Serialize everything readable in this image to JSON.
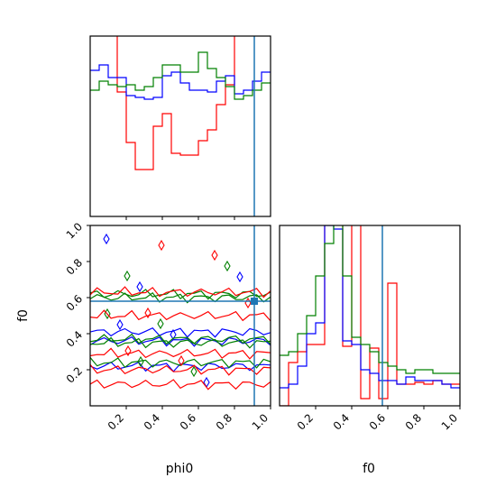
{
  "chart_data": [
    {
      "panel": "phi0 marginal",
      "type": "histogram",
      "xlabel": "",
      "ylabel": "",
      "xlim": [
        0.0,
        1.0
      ],
      "ylim": [
        0,
        100
      ],
      "truth_x": 0.91,
      "bins": 20,
      "series": [
        {
          "color": "#ff0000",
          "values": [
            105,
            101,
            101,
            69,
            41,
            26,
            26,
            50,
            57,
            35,
            34,
            34,
            42,
            48,
            62,
            73,
            102,
            104,
            105,
            105
          ]
        },
        {
          "color": "#0000ff",
          "values": [
            81,
            84,
            77,
            77,
            67,
            66,
            65,
            66,
            78,
            80,
            74,
            70,
            70,
            69,
            75,
            78,
            68,
            70,
            75,
            80
          ]
        },
        {
          "color": "#008000",
          "values": [
            70,
            75,
            73,
            72,
            73,
            70,
            72,
            77,
            84,
            84,
            80,
            80,
            91,
            82,
            77,
            72,
            65,
            67,
            70,
            74
          ]
        }
      ]
    },
    {
      "panel": "phi0 vs f0",
      "type": "contour",
      "xlabel": "phi0",
      "ylabel": "f0",
      "xlim": [
        0.0,
        1.0
      ],
      "ylim": [
        0.0,
        1.0
      ],
      "xticks": [
        "0.2",
        "0.4",
        "0.6",
        "0.8",
        "1.0"
      ],
      "yticks": [
        "0.2",
        "0.4",
        "0.6",
        "0.8",
        "1.0"
      ],
      "truth_x": 0.91,
      "truth_y": 0.58,
      "series": [
        {
          "color": "#0000ff",
          "lines_y": [
            0.22,
            0.36,
            0.41
          ]
        },
        {
          "color": "#008000",
          "lines_y": [
            0.24,
            0.35,
            0.37,
            0.6,
            0.62
          ]
        },
        {
          "color": "#ff0000",
          "lines_y": [
            0.12,
            0.2,
            0.29,
            0.5,
            0.63
          ]
        }
      ]
    },
    {
      "panel": "f0 marginal",
      "type": "histogram",
      "xlabel": "f0",
      "ylabel": "",
      "xlim": [
        0.0,
        1.0
      ],
      "ylim": [
        0,
        100
      ],
      "xticks": [
        "0.2",
        "0.4",
        "0.6",
        "0.8",
        "1.0"
      ],
      "truth_x": 0.57,
      "bins": 20,
      "series": [
        {
          "color": "#ff0000",
          "values": [
            0,
            24,
            30,
            34,
            34,
            104,
            104,
            33,
            104,
            4,
            32,
            4,
            68,
            12,
            12,
            13,
            12,
            14,
            12,
            12
          ]
        },
        {
          "color": "#0000ff",
          "values": [
            10,
            12,
            22,
            40,
            46,
            100,
            98,
            36,
            34,
            20,
            18,
            14,
            14,
            12,
            16,
            14,
            14,
            14,
            12,
            10
          ]
        },
        {
          "color": "#008000",
          "values": [
            28,
            30,
            40,
            50,
            72,
            90,
            103,
            72,
            38,
            34,
            30,
            24,
            22,
            20,
            18,
            20,
            20,
            18,
            18,
            18
          ]
        }
      ]
    }
  ]
}
